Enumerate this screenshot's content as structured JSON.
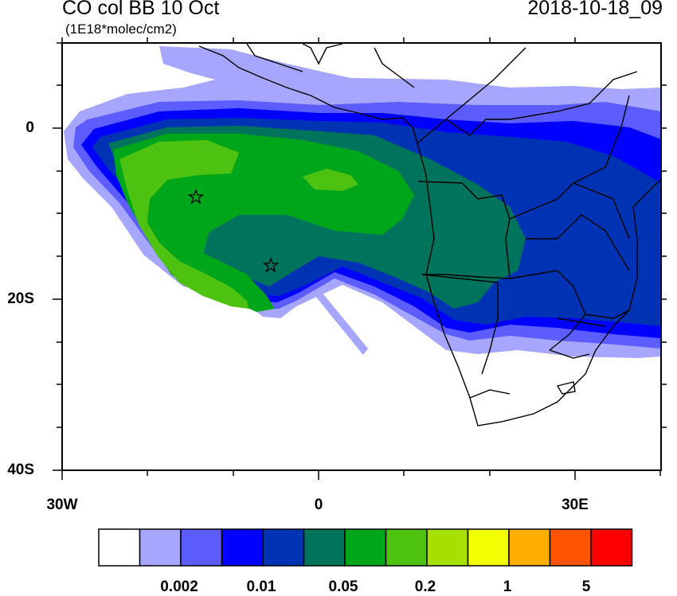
{
  "header": {
    "title": "CO col BB 10 Oct",
    "units": "(1E18*molec/cm2)",
    "timestamp": "2018-10-18_09"
  },
  "axes": {
    "lat_labels": [
      "0",
      "20S",
      "40S"
    ],
    "lon_labels": [
      "30W",
      "0",
      "30E"
    ]
  },
  "map_extent": {
    "lon_min": -30,
    "lon_max": 40,
    "lat_min": -40,
    "lat_max": 10
  },
  "colorbar": {
    "colors": [
      "#ffffff",
      "#a6a6ff",
      "#5c5cff",
      "#0000ff",
      "#0033b3",
      "#00735c",
      "#00a61a",
      "#4dc210",
      "#a6e000",
      "#f2ff00",
      "#ffad00",
      "#ff5500",
      "#ff0000"
    ],
    "labels": [
      "0.002",
      "0.01",
      "0.05",
      "0.2",
      "1",
      "5"
    ]
  },
  "markers": [
    {
      "name": "star-marker",
      "lon": -14.5,
      "lat": -8
    },
    {
      "name": "star-marker",
      "lon": -5.7,
      "lat": -16
    }
  ],
  "icons": {
    "marker": "star-icon"
  }
}
